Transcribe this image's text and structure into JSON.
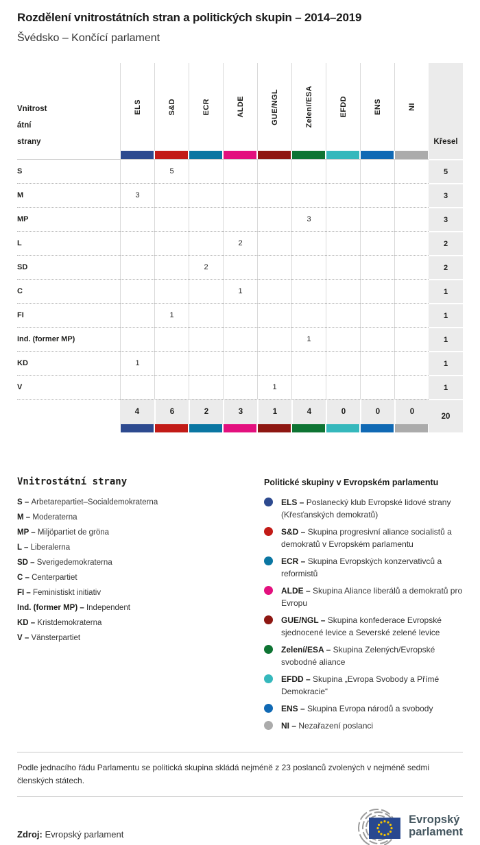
{
  "title": "Rozdělení vnitrostátních stran a politických skupin – 2014–2019",
  "subtitle": "Švédsko – Končící parlament",
  "table": {
    "party_column_header_lines": [
      "Vnitrost",
      "átní",
      "strany"
    ],
    "seats_column_header": "Křesel",
    "groups": [
      {
        "id": "ELS",
        "color": "#2d4a8f"
      },
      {
        "id": "S&D",
        "color": "#c21b17"
      },
      {
        "id": "ECR",
        "color": "#0a76a2"
      },
      {
        "id": "ALDE",
        "color": "#e3107e"
      },
      {
        "id": "GUE/NGL",
        "color": "#8e1712"
      },
      {
        "id": "Zelení/ESA",
        "color": "#0e7433"
      },
      {
        "id": "EFDD",
        "color": "#35b8bc"
      },
      {
        "id": "ENS",
        "color": "#1069b4"
      },
      {
        "id": "NI",
        "color": "#ababab"
      }
    ],
    "rows": [
      {
        "party": "S",
        "values": [
          "",
          "5",
          "",
          "",
          "",
          "",
          "",
          "",
          ""
        ],
        "total": "5"
      },
      {
        "party": "M",
        "values": [
          "3",
          "",
          "",
          "",
          "",
          "",
          "",
          "",
          ""
        ],
        "total": "3"
      },
      {
        "party": "MP",
        "values": [
          "",
          "",
          "",
          "",
          "",
          "3",
          "",
          "",
          ""
        ],
        "total": "3"
      },
      {
        "party": "L",
        "values": [
          "",
          "",
          "",
          "2",
          "",
          "",
          "",
          "",
          ""
        ],
        "total": "2"
      },
      {
        "party": "SD",
        "values": [
          "",
          "",
          "2",
          "",
          "",
          "",
          "",
          "",
          ""
        ],
        "total": "2"
      },
      {
        "party": "C",
        "values": [
          "",
          "",
          "",
          "1",
          "",
          "",
          "",
          "",
          ""
        ],
        "total": "1"
      },
      {
        "party": "FI",
        "values": [
          "",
          "1",
          "",
          "",
          "",
          "",
          "",
          "",
          ""
        ],
        "total": "1"
      },
      {
        "party": "Ind. (former MP)",
        "values": [
          "",
          "",
          "",
          "",
          "",
          "1",
          "",
          "",
          ""
        ],
        "total": "1"
      },
      {
        "party": "KD",
        "values": [
          "1",
          "",
          "",
          "",
          "",
          "",
          "",
          "",
          ""
        ],
        "total": "1"
      },
      {
        "party": "V",
        "values": [
          "",
          "",
          "",
          "",
          "1",
          "",
          "",
          "",
          ""
        ],
        "total": "1"
      }
    ],
    "totals": {
      "values": [
        "4",
        "6",
        "2",
        "3",
        "1",
        "4",
        "0",
        "0",
        "0"
      ],
      "total": "20"
    }
  },
  "chart_data": {
    "type": "table",
    "title": "Rozdělení vnitrostátních stran a politických skupin – 2014–2019",
    "subtitle": "Švédsko – Končící parlament",
    "columns": [
      "ELS",
      "S&D",
      "ECR",
      "ALDE",
      "GUE/NGL",
      "Zelení/ESA",
      "EFDD",
      "ENS",
      "NI",
      "Křesel"
    ],
    "assignments": [
      {
        "party": "S",
        "group": "S&D",
        "seats": 5
      },
      {
        "party": "M",
        "group": "ELS",
        "seats": 3
      },
      {
        "party": "MP",
        "group": "Zelení/ESA",
        "seats": 3
      },
      {
        "party": "L",
        "group": "ALDE",
        "seats": 2
      },
      {
        "party": "SD",
        "group": "ECR",
        "seats": 2
      },
      {
        "party": "C",
        "group": "ALDE",
        "seats": 1
      },
      {
        "party": "FI",
        "group": "S&D",
        "seats": 1
      },
      {
        "party": "Ind. (former MP)",
        "group": "Zelení/ESA",
        "seats": 1
      },
      {
        "party": "KD",
        "group": "ELS",
        "seats": 1
      },
      {
        "party": "V",
        "group": "GUE/NGL",
        "seats": 1
      }
    ],
    "group_totals": {
      "ELS": 4,
      "S&D": 6,
      "ECR": 2,
      "ALDE": 3,
      "GUE/NGL": 1,
      "Zelení/ESA": 4,
      "EFDD": 0,
      "ENS": 0,
      "NI": 0
    },
    "total_seats": 20
  },
  "legend_parties": {
    "title": "Vnitrostátní strany",
    "items": [
      {
        "abbr": "S",
        "name": "Arbetarepartiet–Socialdemokraterna"
      },
      {
        "abbr": "M",
        "name": "Moderaterna"
      },
      {
        "abbr": "MP",
        "name": "Miljöpartiet de gröna"
      },
      {
        "abbr": "L",
        "name": "Liberalerna"
      },
      {
        "abbr": "SD",
        "name": "Sverigedemokraterna"
      },
      {
        "abbr": "C",
        "name": "Centerpartiet"
      },
      {
        "abbr": "FI",
        "name": "Feministiskt initiativ"
      },
      {
        "abbr": "Ind. (former MP)",
        "name": "Independent"
      },
      {
        "abbr": "KD",
        "name": "Kristdemokraterna"
      },
      {
        "abbr": "V",
        "name": "Vänsterpartiet"
      }
    ]
  },
  "legend_groups": {
    "title": "Politické skupiny v Evropském parlamentu",
    "items": [
      {
        "abbr": "ELS",
        "color": "#2d4a8f",
        "desc": "Poslanecký klub Evropské lidové strany (Křesťanských demokratů)"
      },
      {
        "abbr": "S&D",
        "color": "#c21b17",
        "desc": "Skupina progresivní aliance socialistů a demokratů v Evropském parlamentu"
      },
      {
        "abbr": "ECR",
        "color": "#0a76a2",
        "desc": "Skupina Evropských konzervativců a reformistů"
      },
      {
        "abbr": "ALDE",
        "color": "#e3107e",
        "desc": "Skupina Aliance liberálů a demokratů pro Evropu"
      },
      {
        "abbr": "GUE/NGL",
        "color": "#8e1712",
        "desc": "Skupina konfederace Evropské sjednocené levice a Severské zelené levice"
      },
      {
        "abbr": "Zelení/ESA",
        "color": "#0e7433",
        "desc": "Skupina Zelených/Evropské svobodné aliance"
      },
      {
        "abbr": "EFDD",
        "color": "#35b8bc",
        "desc": "Skupina „Evropa Svobody a Přímé Demokracie“"
      },
      {
        "abbr": "ENS",
        "color": "#1069b4",
        "desc": "Skupina Evropa národů a svobody"
      },
      {
        "abbr": "NI",
        "color": "#ababab",
        "desc": "Nezařazení poslanci"
      }
    ]
  },
  "note": "Podle jednacího řádu Parlamentu se politická skupina skládá nejméně z 23 poslanců zvolených v nejméně sedmi členských státech.",
  "source": {
    "label": "Zdroj:",
    "value": "Evropský parlament"
  },
  "logo": {
    "line1": "Evropský",
    "line2": "parlament"
  }
}
